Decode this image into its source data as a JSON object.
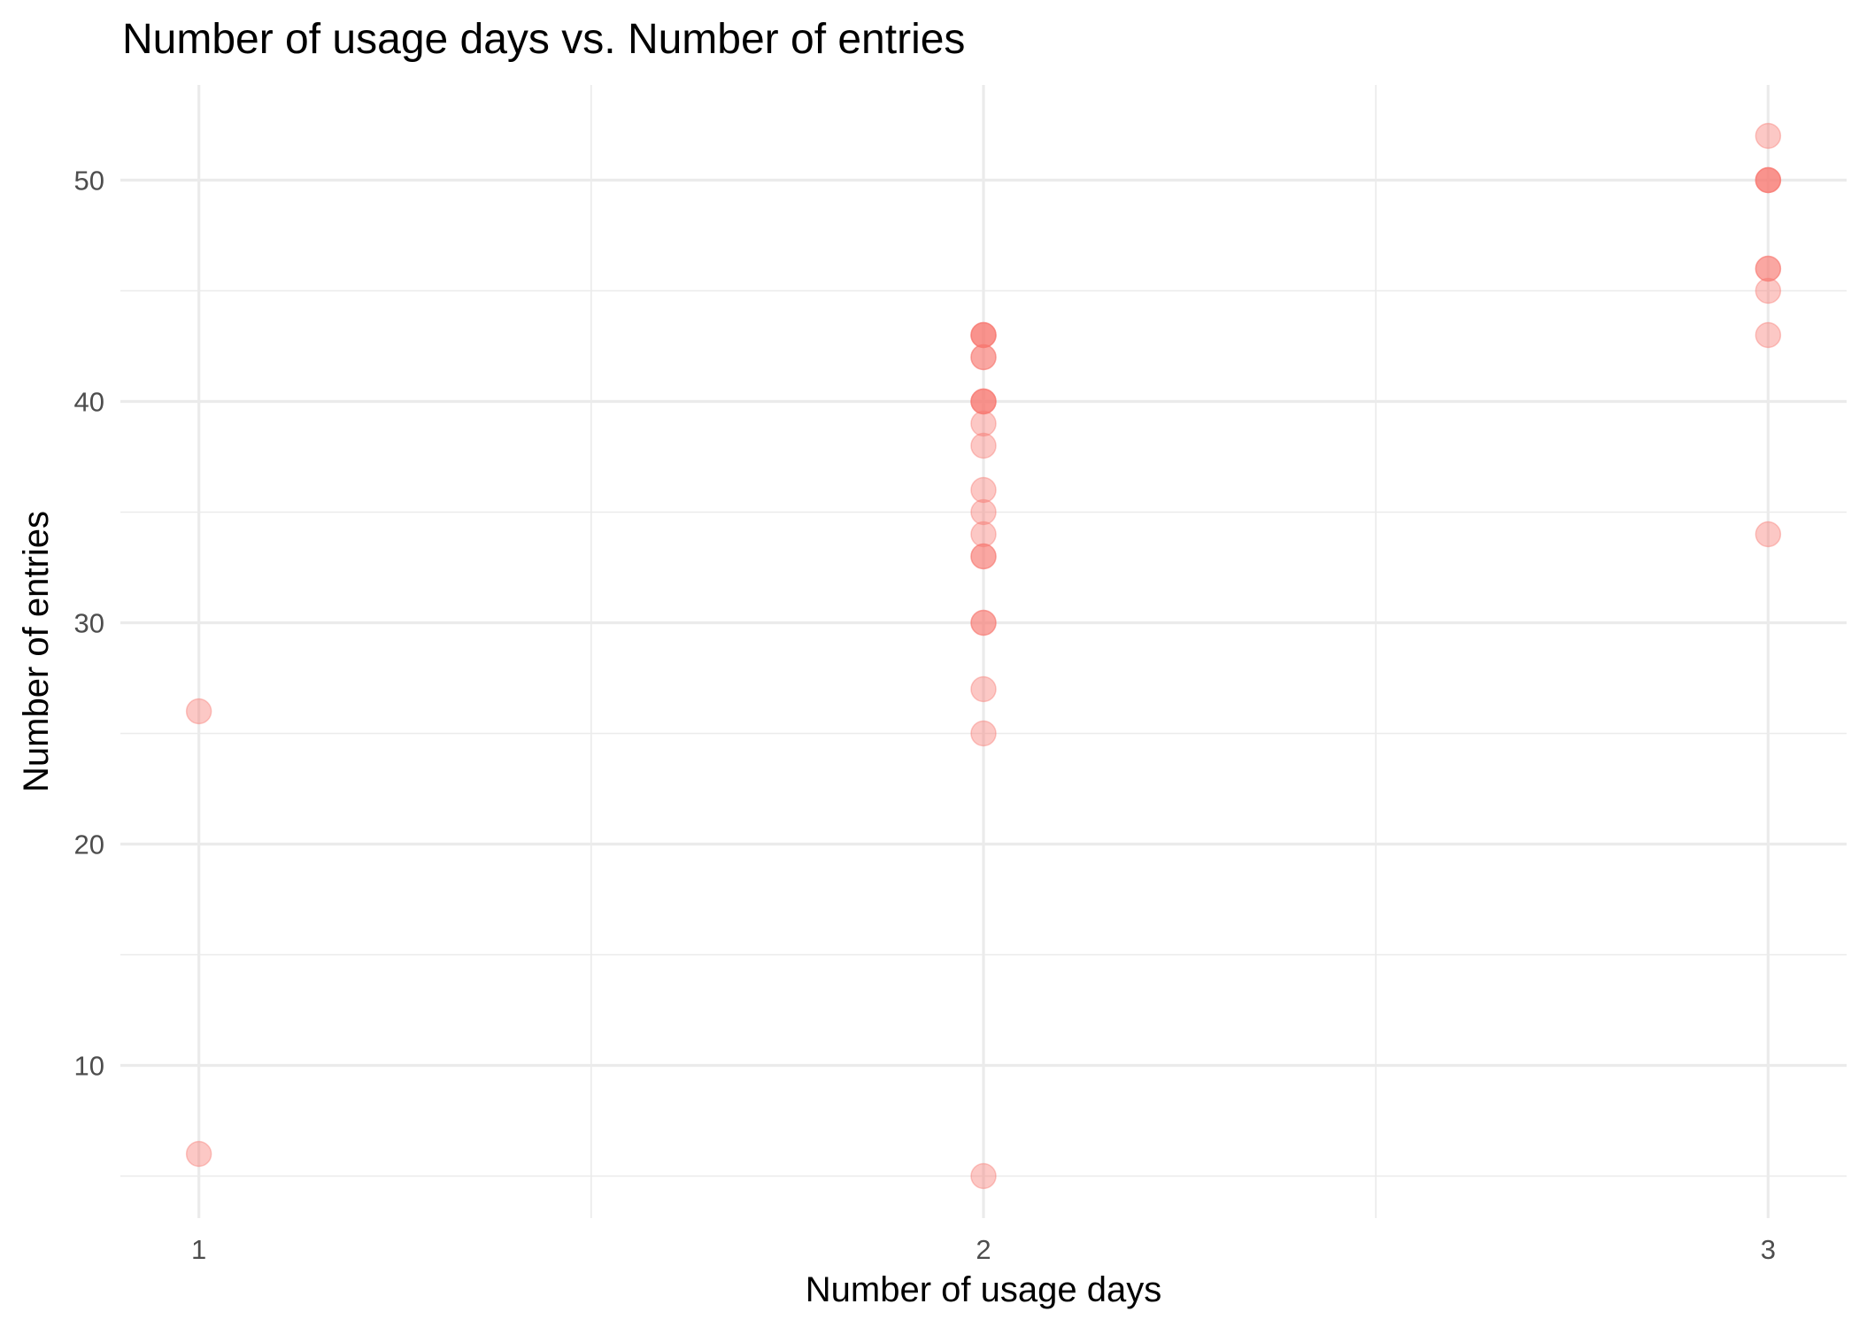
{
  "chart_data": {
    "type": "scatter",
    "title": "Number of usage days vs. Number of entries",
    "xlabel": "Number of usage days",
    "ylabel": "Number of entries",
    "xlim": [
      0.9,
      3.1
    ],
    "ylim": [
      3.1,
      54.3
    ],
    "x_ticks": [
      1,
      2,
      3
    ],
    "y_ticks": [
      10,
      20,
      30,
      40,
      50
    ],
    "grid": true,
    "legend": "none",
    "point_color": "#f8766d",
    "point_alpha": 0.4,
    "points": [
      {
        "x": 1,
        "y": 26
      },
      {
        "x": 1,
        "y": 6
      },
      {
        "x": 2,
        "y": 43
      },
      {
        "x": 2,
        "y": 43
      },
      {
        "x": 2,
        "y": 43
      },
      {
        "x": 2,
        "y": 42
      },
      {
        "x": 2,
        "y": 42
      },
      {
        "x": 2,
        "y": 40
      },
      {
        "x": 2,
        "y": 40
      },
      {
        "x": 2,
        "y": 40
      },
      {
        "x": 2,
        "y": 39
      },
      {
        "x": 2,
        "y": 38
      },
      {
        "x": 2,
        "y": 36
      },
      {
        "x": 2,
        "y": 35
      },
      {
        "x": 2,
        "y": 34
      },
      {
        "x": 2,
        "y": 33
      },
      {
        "x": 2,
        "y": 33
      },
      {
        "x": 2,
        "y": 30
      },
      {
        "x": 2,
        "y": 30
      },
      {
        "x": 2,
        "y": 27
      },
      {
        "x": 2,
        "y": 25
      },
      {
        "x": 2,
        "y": 5
      },
      {
        "x": 3,
        "y": 52
      },
      {
        "x": 3,
        "y": 50
      },
      {
        "x": 3,
        "y": 50
      },
      {
        "x": 3,
        "y": 50
      },
      {
        "x": 3,
        "y": 46
      },
      {
        "x": 3,
        "y": 46
      },
      {
        "x": 3,
        "y": 45
      },
      {
        "x": 3,
        "y": 43
      },
      {
        "x": 3,
        "y": 34
      }
    ]
  }
}
